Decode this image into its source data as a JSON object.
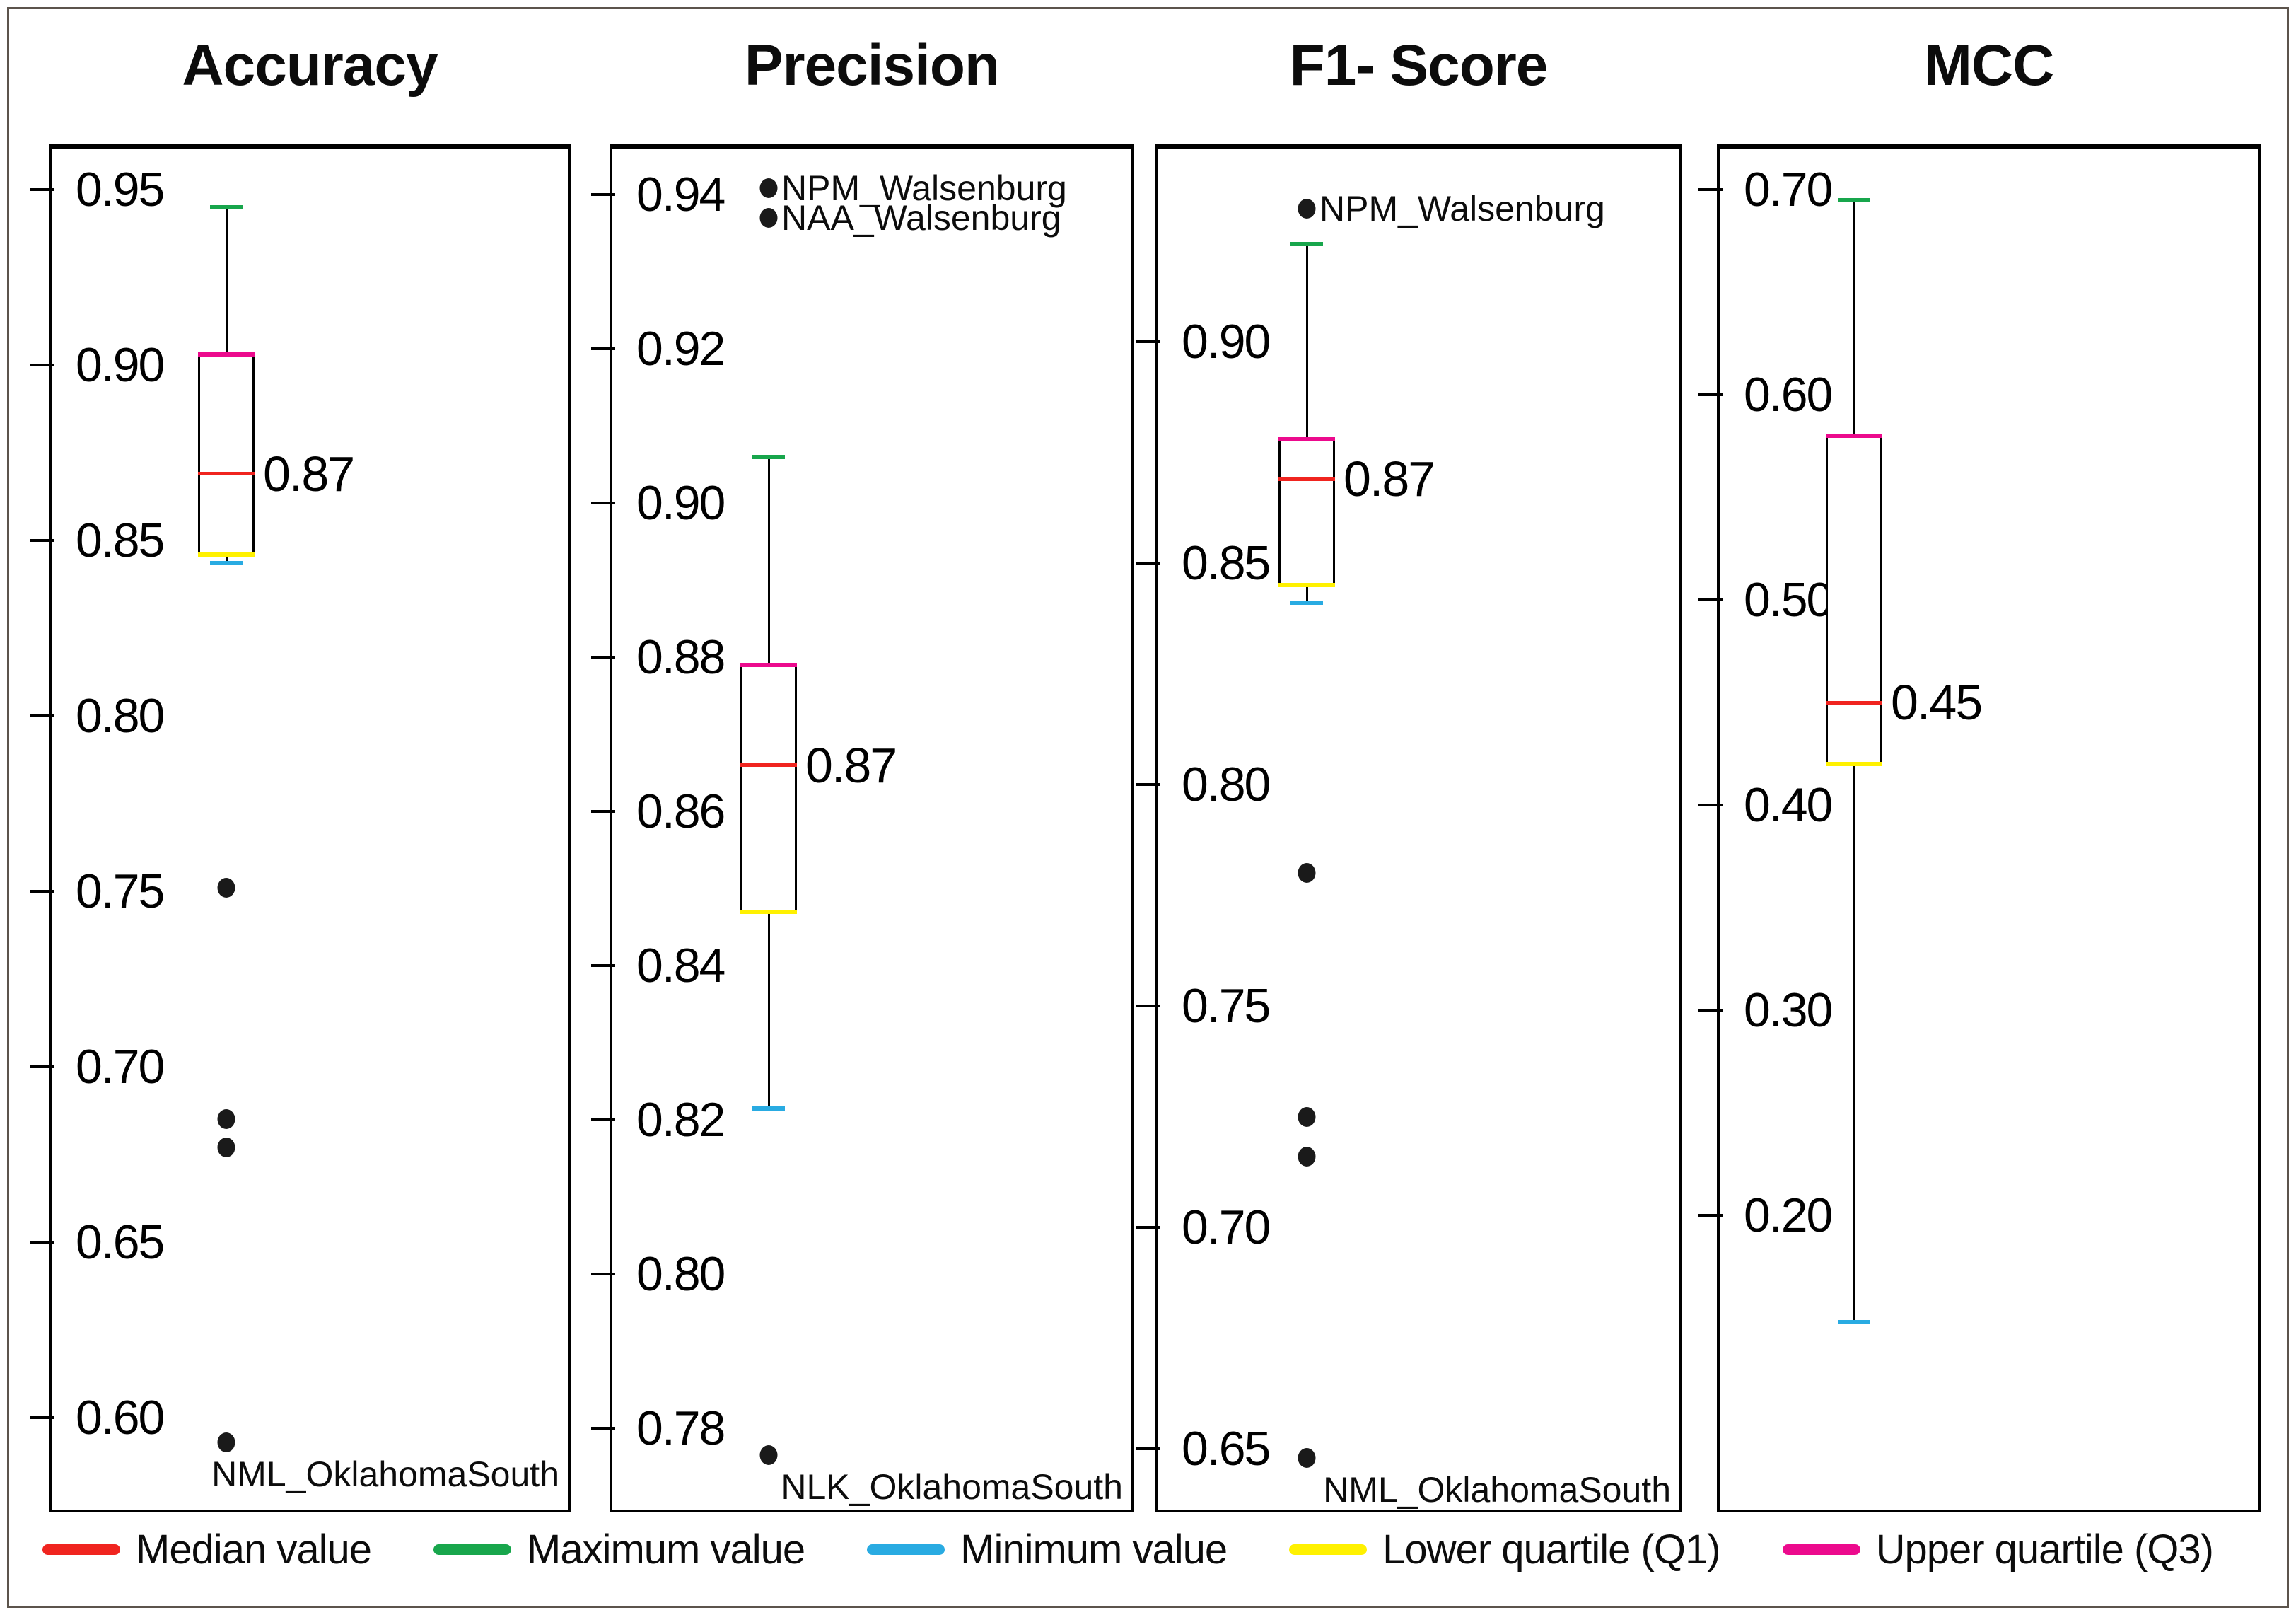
{
  "figure": {
    "background": "#ffffff",
    "border_color": "#5c544c",
    "box_line_color": "#000000",
    "outlier_dot_color": "#1a1a1a"
  },
  "legend": [
    {
      "label": "Median value",
      "color": "#f0241f",
      "name": "median"
    },
    {
      "label": "Maximum value",
      "color": "#18a64c",
      "name": "maximum"
    },
    {
      "label": "Minimum value",
      "color": "#29abe2",
      "name": "minimum"
    },
    {
      "label": "Lower quartile (Q1)",
      "color": "#fff100",
      "name": "lower-quartile"
    },
    {
      "label": "Upper quartile (Q3)",
      "color": "#ec0a8d",
      "name": "upper-quartile"
    }
  ],
  "chart_data": [
    {
      "type": "box",
      "title": "Accuracy",
      "ticks": [
        "0.95",
        "0.90",
        "0.85",
        "0.80",
        "0.75",
        "0.70",
        "0.65",
        "0.60"
      ],
      "ylim": [
        0.576,
        0.957
      ],
      "box": {
        "max": 0.945,
        "q3": 0.903,
        "median": 0.869,
        "q1": 0.846,
        "min": 0.8435,
        "median_label": "0.87"
      },
      "outliers": [
        {
          "value": 0.751
        },
        {
          "value": 0.685
        },
        {
          "value": 0.677
        },
        {
          "value": 0.593,
          "label": "NML_OklahomaSouth",
          "label_pos": "below"
        }
      ]
    },
    {
      "type": "box",
      "title": "Precision",
      "ticks": [
        "0.94",
        "0.92",
        "0.90",
        "0.88",
        "0.86",
        "0.84",
        "0.82",
        "0.80",
        "0.78"
      ],
      "ylim": [
        0.769,
        0.949
      ],
      "box": {
        "max": 0.906,
        "q3": 0.879,
        "median": 0.866,
        "q1": 0.847,
        "min": 0.8215,
        "median_label": "0.87"
      },
      "outliers": [
        {
          "value": 0.9408,
          "label": "NPM_Walsenburg",
          "label_pos": "right"
        },
        {
          "value": 0.937,
          "label": "NAA_Walsenburg",
          "label_pos": "right"
        },
        {
          "value": 0.7765,
          "label": "NLK_OklahomaSouth",
          "label_pos": "below"
        }
      ]
    },
    {
      "type": "box",
      "title": "F1- Score",
      "ylim": [
        0.632,
        0.945
      ],
      "ticks": [
        "0.90",
        "0.85",
        "0.80",
        "0.75",
        "0.70",
        "0.65"
      ],
      "box": {
        "max": 0.922,
        "q3": 0.878,
        "median": 0.869,
        "q1": 0.845,
        "min": 0.841,
        "median_label": "0.87"
      },
      "outliers": [
        {
          "value": 0.93,
          "label": "NPM_Walsenburg",
          "label_pos": "right"
        },
        {
          "value": 0.78
        },
        {
          "value": 0.725
        },
        {
          "value": 0.716
        },
        {
          "value": 0.648,
          "label": "NML_OklahomaSouth",
          "label_pos": "below"
        }
      ]
    },
    {
      "type": "box",
      "title": "MCC",
      "ticks": [
        "0.70",
        "0.60",
        "0.50",
        "0.40",
        "0.30",
        "0.20"
      ],
      "ylim": [
        0.055,
        0.792
      ],
      "box": {
        "max": 0.695,
        "q3": 0.58,
        "median": 0.45,
        "q1": 0.42,
        "min": 0.148,
        "median_label": "0.45"
      },
      "outliers": []
    }
  ]
}
